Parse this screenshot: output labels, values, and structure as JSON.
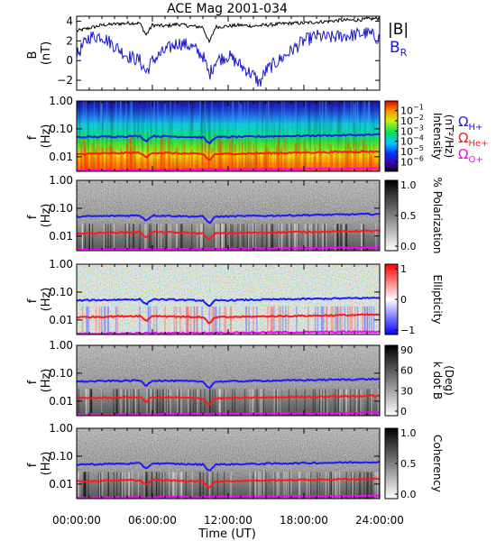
{
  "figure": {
    "title": "ACE Mag 2001-034",
    "xlabel": "Time (UT)",
    "xticks": [
      "00:00:00",
      "06:00:00",
      "12:00:00",
      "18:00:00",
      "24:00:00"
    ]
  },
  "freq_ticks": [
    "1.00",
    "0.10",
    "0.01"
  ],
  "freq_axis_label": "(Hz)",
  "freq_axis_symbol": "f",
  "colors": {
    "B_total": "#000000",
    "B_R": "#1a1acc",
    "He_line": "#ff1a1a",
    "H_line": "#1a1aff",
    "O_line": "#ff00ff"
  },
  "chart_data": [
    {
      "type": "line",
      "panel": "B",
      "ylabel": "B",
      "yunit": "(nT)",
      "yticks": [
        "4",
        "2",
        "0",
        "−2"
      ],
      "ylim": [
        -3,
        4.5
      ],
      "xlim_hours": [
        0,
        24
      ],
      "legend": [
        "|B|",
        "B_R"
      ],
      "legend_print": {
        "b_total": "|B|",
        "b_r_main": "B",
        "b_r_sub": "R"
      },
      "series": [
        {
          "name": "|B|",
          "color": "#000000",
          "x_hours": [
            0,
            1,
            2,
            3,
            4,
            5,
            5.5,
            6,
            7,
            8,
            9,
            10,
            10.5,
            11,
            12,
            13,
            14,
            15,
            16,
            17,
            18,
            19,
            20,
            21,
            22,
            23,
            24
          ],
          "values": [
            3.0,
            3.3,
            3.6,
            3.7,
            3.8,
            3.8,
            2.6,
            3.6,
            3.5,
            3.7,
            3.5,
            3.4,
            1.8,
            3.4,
            3.5,
            3.6,
            3.5,
            3.6,
            3.7,
            3.8,
            3.8,
            3.9,
            4.0,
            4.1,
            4.1,
            4.2,
            4.3
          ]
        },
        {
          "name": "B_R",
          "color": "#1a1acc",
          "x_hours": [
            0,
            0.5,
            1,
            2,
            3,
            4,
            5,
            5.5,
            6,
            7,
            8,
            9,
            10,
            10.5,
            11,
            12,
            13,
            14,
            14.5,
            15,
            16,
            17,
            18,
            19,
            20,
            21,
            22,
            23,
            24
          ],
          "values": [
            0.5,
            1.5,
            2.4,
            2.5,
            1.5,
            0.5,
            0.0,
            -1.2,
            0.0,
            1.0,
            1.8,
            1.5,
            0.5,
            -1.5,
            0.0,
            0.5,
            -0.5,
            -1.5,
            -2.3,
            -1.0,
            0.0,
            1.0,
            2.0,
            2.5,
            2.3,
            2.5,
            2.6,
            2.8,
            2.2
          ]
        }
      ]
    },
    {
      "type": "heatmap",
      "panel": "intensity",
      "colorbar_label": "Intensity",
      "colorbar_unit": "(nT²/Hz)",
      "colorbar_ticks": [
        {
          "mantissa": "10",
          "exponent": "−1"
        },
        {
          "mantissa": "10",
          "exponent": "−2"
        },
        {
          "mantissa": "10",
          "exponent": "−3"
        },
        {
          "mantissa": "10",
          "exponent": "−4"
        },
        {
          "mantissa": "10",
          "exponent": "−5"
        },
        {
          "mantissa": "10",
          "exponent": "−6"
        }
      ],
      "scale": "log",
      "ylim_hz": [
        0.003,
        1.0
      ],
      "legend": [
        {
          "name": "ΩH+",
          "symbol": "Ω",
          "sub": "H+",
          "color": "#1a1aff"
        },
        {
          "name": "ΩHe+",
          "symbol": "Ω",
          "sub": "He+",
          "color": "#ff1a1a"
        },
        {
          "name": "ΩO+",
          "symbol": "Ω",
          "sub": "O+",
          "color": "#ff00ff"
        }
      ]
    },
    {
      "type": "heatmap",
      "panel": "polarization",
      "colorbar_label": "% Polarization",
      "colorbar_ticks": [
        "1.0",
        "0.5",
        "0.0"
      ],
      "ylim_hz": [
        0.003,
        1.0
      ]
    },
    {
      "type": "heatmap",
      "panel": "ellipticity",
      "colorbar_label": "Ellipticity",
      "colorbar_ticks": [
        "1",
        "0",
        "−1"
      ],
      "ylim_hz": [
        0.003,
        1.0
      ]
    },
    {
      "type": "heatmap",
      "panel": "kdotb",
      "colorbar_label": "k dot B",
      "colorbar_unit": "(Deg)",
      "colorbar_ticks": [
        "90",
        "60",
        "30",
        "0"
      ],
      "ylim_hz": [
        0.003,
        1.0
      ]
    },
    {
      "type": "heatmap",
      "panel": "coherency",
      "colorbar_label": "Coherency",
      "colorbar_ticks": [
        "1.0",
        "0.5",
        "0.0"
      ],
      "ylim_hz": [
        0.003,
        1.0
      ]
    },
    {
      "type": "line",
      "panel": "cyclotron_frequencies",
      "ylim_hz": [
        0.003,
        1.0
      ],
      "series": [
        {
          "name": "ΩH+",
          "color": "#1a1aff",
          "x_hours": [
            0,
            5,
            5.5,
            6,
            10,
            10.5,
            11,
            24
          ],
          "values": [
            0.05,
            0.055,
            0.035,
            0.055,
            0.05,
            0.028,
            0.05,
            0.062
          ]
        },
        {
          "name": "ΩHe+",
          "color": "#ff1a1a",
          "x_hours": [
            0,
            5,
            5.5,
            6,
            10,
            10.5,
            11,
            24
          ],
          "values": [
            0.0125,
            0.014,
            0.009,
            0.014,
            0.0125,
            0.007,
            0.0125,
            0.0155
          ]
        },
        {
          "name": "ΩO+",
          "color": "#ff00ff",
          "x_hours": [
            0,
            24
          ],
          "values": [
            0.0032,
            0.0038
          ]
        }
      ]
    }
  ]
}
